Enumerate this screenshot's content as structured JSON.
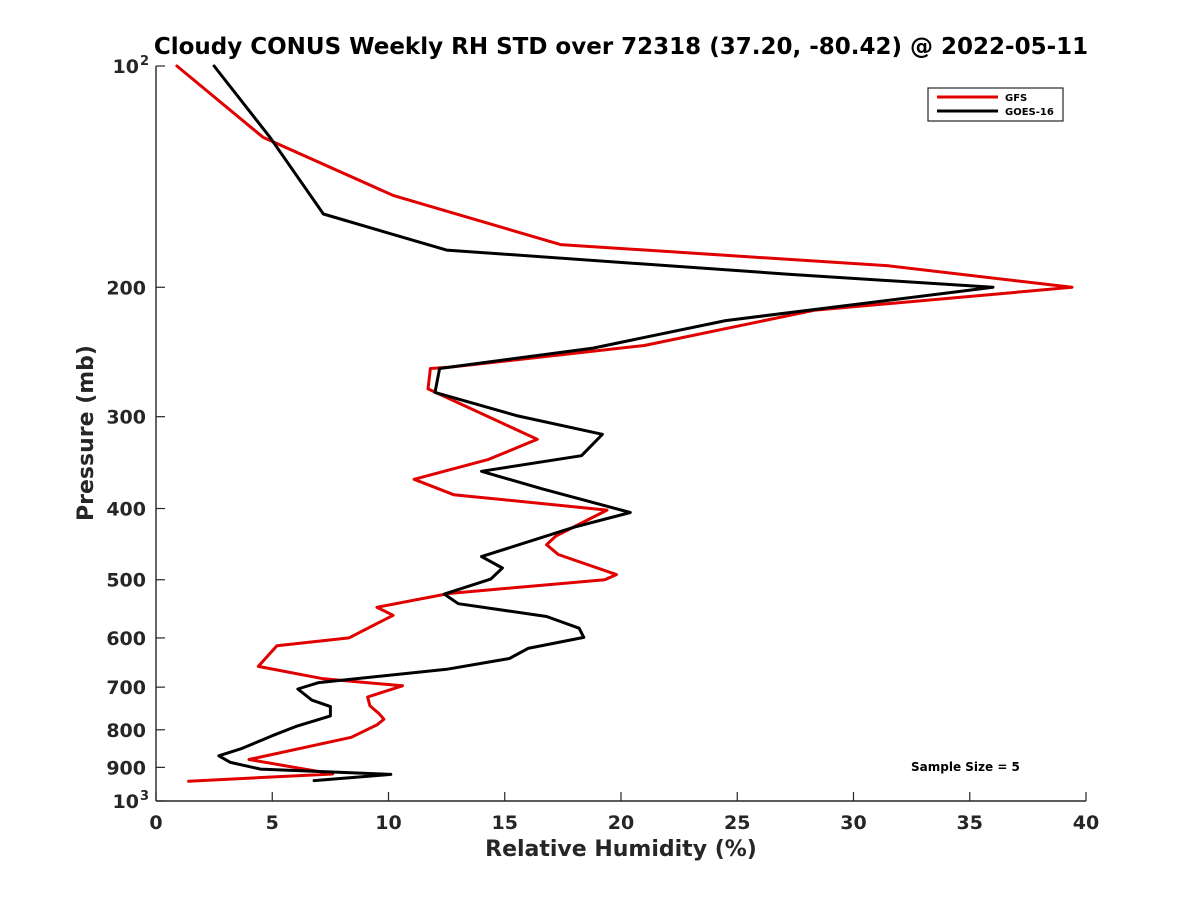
{
  "chart_data": {
    "type": "line",
    "title": "Cloudy CONUS Weekly RH STD over 72318 (37.20, -80.42) @ 2022-05-11",
    "xlabel": "Relative Humidity (%)",
    "ylabel": "Pressure (mb)",
    "xlim": [
      0,
      40
    ],
    "ylim": [
      100,
      1000
    ],
    "yscale": "log",
    "yreversed": true,
    "x_ticks": [
      0,
      5,
      10,
      15,
      20,
      25,
      30,
      35,
      40
    ],
    "x_tick_labels": [
      "0",
      "5",
      "10",
      "15",
      "20",
      "25",
      "30",
      "35",
      "40"
    ],
    "y_ticks": [
      {
        "value": 100,
        "label": "10",
        "exp": "2"
      },
      {
        "value": 200,
        "label": "200"
      },
      {
        "value": 300,
        "label": "300"
      },
      {
        "value": 400,
        "label": "400"
      },
      {
        "value": 500,
        "label": "500"
      },
      {
        "value": 600,
        "label": "600"
      },
      {
        "value": 700,
        "label": "700"
      },
      {
        "value": 800,
        "label": "800"
      },
      {
        "value": 900,
        "label": "900"
      },
      {
        "value": 1000,
        "label": "10",
        "exp": "3"
      }
    ],
    "legend_position": "top-right",
    "annotation": "Sample Size = 5",
    "series": [
      {
        "name": "GFS",
        "color": "#e00000",
        "points": [
          [
            0.9,
            100
          ],
          [
            4.6,
            125
          ],
          [
            10.2,
            150
          ],
          [
            17.4,
            175
          ],
          [
            31.5,
            187
          ],
          [
            39.4,
            200
          ],
          [
            28.3,
            215
          ],
          [
            21.0,
            240
          ],
          [
            12.6,
            257
          ],
          [
            11.8,
            258
          ],
          [
            11.7,
            275
          ],
          [
            16.4,
            322
          ],
          [
            14.3,
            343
          ],
          [
            11.1,
            365
          ],
          [
            12.8,
            383
          ],
          [
            19.4,
            402
          ],
          [
            17.2,
            436
          ],
          [
            16.8,
            448
          ],
          [
            17.3,
            462
          ],
          [
            19.8,
            492
          ],
          [
            19.3,
            500
          ],
          [
            12.6,
            522
          ],
          [
            9.5,
            545
          ],
          [
            10.2,
            559
          ],
          [
            8.3,
            600
          ],
          [
            5.2,
            615
          ],
          [
            4.4,
            656
          ],
          [
            7.2,
            682
          ],
          [
            10.6,
            697
          ],
          [
            9.1,
            722
          ],
          [
            9.2,
            742
          ],
          [
            9.6,
            761
          ],
          [
            9.8,
            774
          ],
          [
            9.5,
            788
          ],
          [
            8.4,
            819
          ],
          [
            4.0,
            878
          ],
          [
            7.6,
            919
          ],
          [
            1.4,
            940
          ]
        ]
      },
      {
        "name": "GOES-16",
        "color": "#000000",
        "points": [
          [
            2.5,
            100
          ],
          [
            4.9,
            125
          ],
          [
            7.2,
            159
          ],
          [
            12.5,
            178
          ],
          [
            27.2,
            192
          ],
          [
            36.0,
            200
          ],
          [
            24.5,
            222
          ],
          [
            18.8,
            242
          ],
          [
            12.2,
            258
          ],
          [
            12.0,
            278
          ],
          [
            15.5,
            299
          ],
          [
            19.2,
            317
          ],
          [
            18.3,
            339
          ],
          [
            14.0,
            356
          ],
          [
            16.6,
            376
          ],
          [
            20.4,
            405
          ],
          [
            18.0,
            424
          ],
          [
            14.0,
            465
          ],
          [
            14.9,
            482
          ],
          [
            14.4,
            499
          ],
          [
            12.4,
            523
          ],
          [
            13.0,
            539
          ],
          [
            16.8,
            561
          ],
          [
            18.2,
            582
          ],
          [
            18.4,
            599
          ],
          [
            16.0,
            620
          ],
          [
            15.2,
            640
          ],
          [
            12.5,
            662
          ],
          [
            7.0,
            690
          ],
          [
            6.1,
            704
          ],
          [
            6.7,
            729
          ],
          [
            7.5,
            744
          ],
          [
            7.5,
            766
          ],
          [
            6.0,
            792
          ],
          [
            5.0,
            815
          ],
          [
            3.7,
            848
          ],
          [
            2.7,
            868
          ],
          [
            3.2,
            886
          ],
          [
            4.5,
            905
          ],
          [
            10.1,
            920
          ],
          [
            6.8,
            938
          ]
        ]
      }
    ]
  }
}
